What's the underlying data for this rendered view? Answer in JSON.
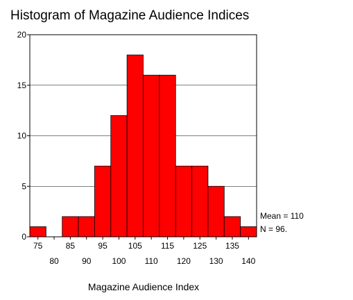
{
  "chart_data": {
    "type": "bar",
    "title": "Histogram of Magazine Audience Indices",
    "xlabel": "Magazine Audience Index",
    "ylabel": "",
    "bins": [
      {
        "x0": 72.5,
        "x1": 77.5,
        "count": 1
      },
      {
        "x0": 77.5,
        "x1": 82.5,
        "count": 0
      },
      {
        "x0": 82.5,
        "x1": 87.5,
        "count": 2
      },
      {
        "x0": 87.5,
        "x1": 92.5,
        "count": 2
      },
      {
        "x0": 92.5,
        "x1": 97.5,
        "count": 7
      },
      {
        "x0": 97.5,
        "x1": 102.5,
        "count": 12
      },
      {
        "x0": 102.5,
        "x1": 107.5,
        "count": 18
      },
      {
        "x0": 107.5,
        "x1": 112.5,
        "count": 16
      },
      {
        "x0": 112.5,
        "x1": 117.5,
        "count": 16
      },
      {
        "x0": 117.5,
        "x1": 122.5,
        "count": 7
      },
      {
        "x0": 122.5,
        "x1": 127.5,
        "count": 7
      },
      {
        "x0": 127.5,
        "x1": 132.5,
        "count": 5
      },
      {
        "x0": 132.5,
        "x1": 137.5,
        "count": 2
      },
      {
        "x0": 137.5,
        "x1": 142.5,
        "count": 1
      }
    ],
    "xlim": [
      72.5,
      142.5
    ],
    "ylim": [
      0,
      20
    ],
    "yticks": [
      "0",
      "5",
      "10",
      "15",
      "20"
    ],
    "ytick_values": [
      0,
      5,
      10,
      15,
      20
    ],
    "xticks_upper": [
      {
        "value": 75,
        "label": "75"
      },
      {
        "value": 85,
        "label": "85"
      },
      {
        "value": 95,
        "label": "95"
      },
      {
        "value": 105,
        "label": "105"
      },
      {
        "value": 115,
        "label": "115"
      },
      {
        "value": 125,
        "label": "125"
      },
      {
        "value": 135,
        "label": "135"
      }
    ],
    "xticks_lower": [
      {
        "value": 80,
        "label": "80"
      },
      {
        "value": 90,
        "label": "90"
      },
      {
        "value": 100,
        "label": "100"
      },
      {
        "value": 110,
        "label": "110"
      },
      {
        "value": 120,
        "label": "120"
      },
      {
        "value": 130,
        "label": "130"
      },
      {
        "value": 140,
        "label": "140"
      }
    ],
    "grid": true,
    "legend_placement": "right",
    "stats": {
      "mean": "Mean = 110",
      "n": "N = 96."
    },
    "colors": {
      "bar": "#ff0000",
      "bar_stroke": "#000000",
      "grid": "#000000",
      "axis": "#000000",
      "text": "#000000"
    }
  }
}
